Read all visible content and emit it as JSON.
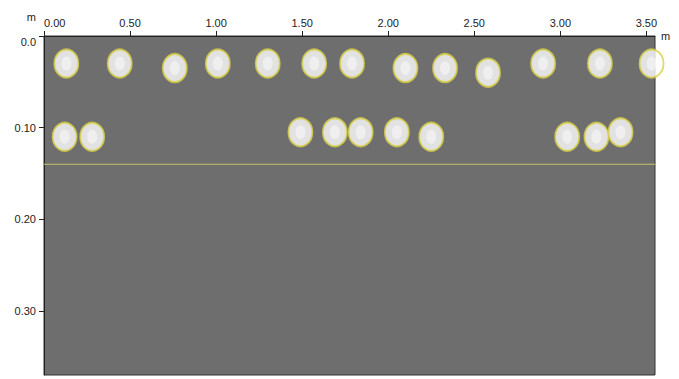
{
  "chart_data": {
    "type": "scatter",
    "x_label": "m",
    "y_label": "m",
    "xlim": [
      0,
      3.55
    ],
    "xticks": [
      {
        "value": 0,
        "label": "0.00"
      },
      {
        "value": 0.5,
        "label": "0.50"
      },
      {
        "value": 1,
        "label": "1.00"
      },
      {
        "value": 1.5,
        "label": "1.50"
      },
      {
        "value": 2,
        "label": "2.00"
      },
      {
        "value": 2.5,
        "label": "2.50"
      },
      {
        "value": 3,
        "label": "3.00"
      },
      {
        "value": 3.5,
        "label": "3.50"
      }
    ],
    "ylim": [
      0,
      0.37
    ],
    "yticks": [
      {
        "value": 0,
        "label": "0.0"
      },
      {
        "value": 0.1,
        "label": "0.10"
      },
      {
        "value": 0.2,
        "label": "0.20"
      },
      {
        "value": 0.3,
        "label": "0.30"
      }
    ],
    "grid": false,
    "series": [
      {
        "type": "scatter",
        "marker": "ellipse",
        "color": "#d9d24a",
        "x": [
          0.13,
          0.44,
          0.76,
          1.01,
          1.3,
          1.57,
          1.79,
          2.1,
          2.33,
          2.58,
          2.9,
          3.23,
          3.53
        ],
        "values": [
          0.03,
          0.03,
          0.035,
          0.03,
          0.03,
          0.03,
          0.03,
          0.035,
          0.035,
          0.04,
          0.03,
          0.03,
          0.03
        ]
      },
      {
        "type": "scatter",
        "marker": "ellipse",
        "color": "#d9d24a",
        "x": [
          0.12,
          0.28,
          1.49,
          1.69,
          1.84,
          2.05,
          2.25,
          3.04,
          3.21,
          3.35
        ],
        "values": [
          0.11,
          0.11,
          0.105,
          0.105,
          0.105,
          0.105,
          0.11,
          0.11,
          0.11,
          0.105
        ]
      },
      {
        "type": "line",
        "line_style": "solid",
        "color": "#c8c46a",
        "x": [
          0,
          3.55
        ],
        "values": [
          0.14,
          0.14
        ]
      }
    ]
  }
}
